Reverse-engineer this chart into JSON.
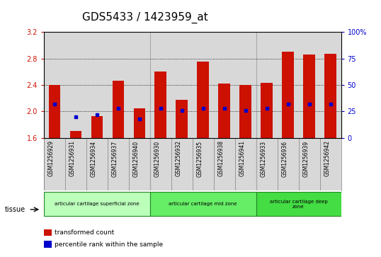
{
  "title": "GDS5433 / 1423959_at",
  "samples": [
    "GSM1256929",
    "GSM1256931",
    "GSM1256934",
    "GSM1256937",
    "GSM1256940",
    "GSM1256930",
    "GSM1256932",
    "GSM1256935",
    "GSM1256938",
    "GSM1256941",
    "GSM1256933",
    "GSM1256936",
    "GSM1256939",
    "GSM1256942"
  ],
  "transformed_count": [
    2.4,
    1.7,
    1.93,
    2.46,
    2.05,
    2.6,
    2.18,
    2.75,
    2.42,
    2.4,
    2.43,
    2.9,
    2.86,
    2.87
  ],
  "percentile_rank": [
    32,
    20,
    22,
    28,
    18,
    28,
    26,
    28,
    28,
    26,
    28,
    32,
    32,
    32
  ],
  "ylim": [
    1.6,
    3.2
  ],
  "yticks": [
    1.6,
    2.0,
    2.4,
    2.8,
    3.2
  ],
  "y2lim": [
    0,
    100
  ],
  "y2ticks": [
    0,
    25,
    50,
    75,
    100
  ],
  "y2labels": [
    "0",
    "25",
    "50",
    "75",
    "100%"
  ],
  "bar_color": "#cc1100",
  "dot_color": "#0000cc",
  "bar_width": 0.55,
  "groups": [
    {
      "label": "articular cartilage superficial zone",
      "start": 0,
      "end": 5,
      "color": "#bbffbb"
    },
    {
      "label": "articular cartilage mid zone",
      "start": 5,
      "end": 10,
      "color": "#66ee66"
    },
    {
      "label": "articular cartilage deep\nzone",
      "start": 10,
      "end": 14,
      "color": "#44dd44"
    }
  ],
  "tissue_label": "tissue",
  "legend_items": [
    {
      "color": "#cc1100",
      "label": "transformed count"
    },
    {
      "color": "#0000cc",
      "label": "percentile rank within the sample"
    }
  ],
  "grid_color": "black",
  "col_bg_color": "#d8d8d8",
  "plot_bg": "white",
  "title_fontsize": 11,
  "tick_fontsize": 7,
  "label_fontsize": 7,
  "y_tick_color": "#cc1100",
  "y2_tick_color": "#0000cc"
}
